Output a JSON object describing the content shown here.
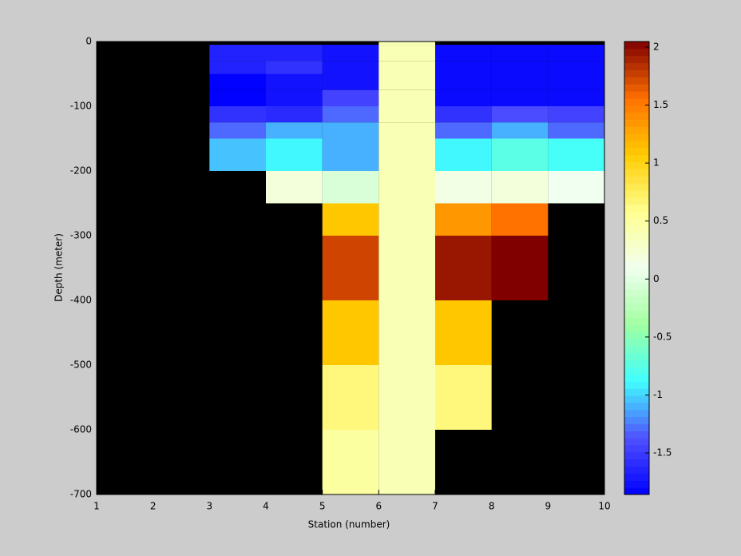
{
  "chart_data": {
    "type": "heatmap",
    "xlabel": "Station (number)",
    "ylabel": "Depth (meter)",
    "x": [
      1,
      2,
      3,
      4,
      5,
      6,
      7,
      8,
      9,
      10
    ],
    "y": [
      0,
      -5,
      -30,
      -50,
      -75,
      -100,
      -125,
      -150,
      -200,
      -250,
      -300,
      -400,
      -500,
      -600,
      -700
    ],
    "values": [
      [
        null,
        null,
        null,
        null,
        null,
        0.4,
        null,
        null,
        null
      ],
      [
        null,
        null,
        -1.65,
        -1.65,
        -1.75,
        0.4,
        -1.8,
        -1.8,
        -1.8
      ],
      [
        null,
        null,
        -1.65,
        -1.55,
        -1.75,
        0.4,
        -1.8,
        -1.8,
        -1.8
      ],
      [
        null,
        null,
        -1.85,
        -1.75,
        -1.75,
        0.4,
        -1.8,
        -1.8,
        -1.8
      ],
      [
        null,
        null,
        -1.85,
        -1.75,
        -1.45,
        0.4,
        -1.8,
        -1.8,
        -1.8
      ],
      [
        null,
        null,
        -1.55,
        -1.6,
        -1.3,
        0.4,
        -1.55,
        -1.4,
        -1.45
      ],
      [
        null,
        null,
        -1.3,
        -1.1,
        -1.1,
        0.4,
        -1.3,
        -1.1,
        -1.3
      ],
      [
        null,
        null,
        -1.05,
        -0.9,
        -1.1,
        0.4,
        -0.9,
        -0.75,
        -0.85
      ],
      [
        null,
        null,
        null,
        0.2,
        -0.05,
        0.4,
        0.15,
        0.2,
        0.1
      ],
      [
        null,
        null,
        null,
        null,
        1.1,
        0.4,
        1.35,
        1.55,
        null
      ],
      [
        null,
        null,
        null,
        null,
        1.75,
        0.4,
        1.95,
        2.05,
        null
      ],
      [
        null,
        null,
        null,
        null,
        1.1,
        0.4,
        1.1,
        null,
        null
      ],
      [
        null,
        null,
        null,
        null,
        0.65,
        0.4,
        0.65,
        null,
        null
      ],
      [
        null,
        null,
        null,
        null,
        0.5,
        0.4,
        null,
        null,
        null
      ]
    ],
    "xlim": [
      1,
      10
    ],
    "xticks": [
      1,
      2,
      3,
      4,
      5,
      6,
      7,
      8,
      9,
      10
    ],
    "ylim": [
      -700,
      0
    ],
    "yticks": [
      0,
      -100,
      -200,
      -300,
      -400,
      -500,
      -600,
      -700
    ],
    "clim": [
      -1.858,
      2.048
    ],
    "cticks": [
      -1.5,
      -1,
      -0.5,
      0,
      0.5,
      1,
      1.5,
      2
    ],
    "colormap": [
      "#0000ff",
      "#5050ff",
      "#40ffff",
      "#a0ffa0",
      "#f0fff0",
      "#ffff90",
      "#ffcc00",
      "#ff7000",
      "#800000"
    ],
    "background_color": "#000000"
  }
}
